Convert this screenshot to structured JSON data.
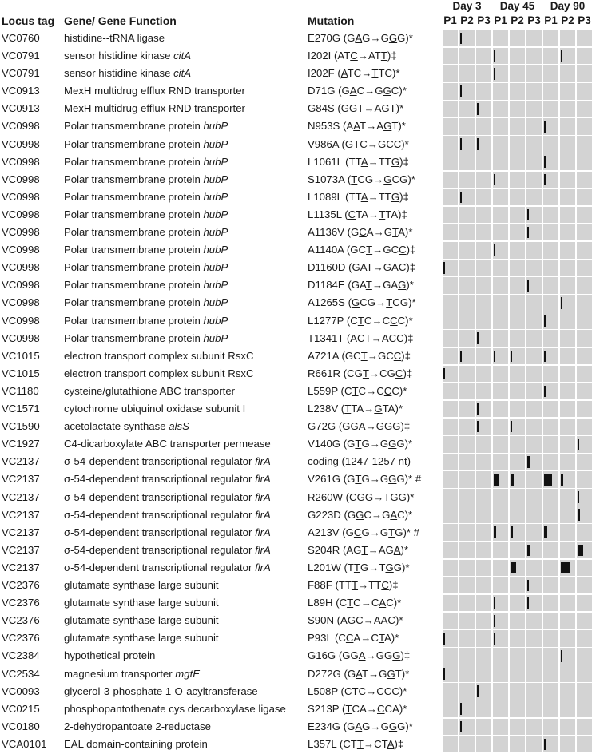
{
  "headers": {
    "locus": "Locus tag",
    "gene": "Gene/ Gene Function",
    "mutation": "Mutation"
  },
  "days": [
    "Day 3",
    "Day 45",
    "Day 90"
  ],
  "populations": [
    "P1",
    "P2",
    "P3",
    "P1",
    "P2",
    "P3",
    "P1",
    "P2",
    "P3"
  ],
  "rows": [
    {
      "locus": "VC0760",
      "gene": "histidine--tRNA ligase",
      "mut": "E270G (G[A]G→G[G]G)*",
      "marks": [
        [
          1,
          0.1
        ]
      ]
    },
    {
      "locus": "VC0791",
      "gene": "sensor histidine kinase {citA}",
      "mut": "I202I (AT[C]→AT[T])‡",
      "marks": [
        [
          3,
          0.1
        ],
        [
          7,
          0.1
        ]
      ]
    },
    {
      "locus": "VC0791",
      "gene": "sensor histidine kinase {citA}",
      "mut": "I202F ([A]TC→[T]TC)*",
      "marks": [
        [
          3,
          0.1
        ]
      ]
    },
    {
      "locus": "VC0913",
      "gene": "MexH multidrug efflux RND transporter",
      "mut": "D71G (G[A]C→G[G]C)*",
      "marks": [
        [
          1,
          0.1
        ]
      ]
    },
    {
      "locus": "VC0913",
      "gene": "MexH multidrug efflux RND transporter",
      "mut": "G84S ([G]GT→[A]GT)*",
      "marks": [
        [
          2,
          0.1
        ]
      ]
    },
    {
      "locus": "VC0998",
      "gene": "Polar transmembrane protein {hubP}",
      "mut": "N953S (A[A]T→A[G]T)*",
      "marks": [
        [
          6,
          0.1
        ]
      ]
    },
    {
      "locus": "VC0998",
      "gene": "Polar transmembrane protein {hubP}",
      "mut": "V986A (G[T]C→G[C]C)*",
      "marks": [
        [
          1,
          0.1
        ],
        [
          2,
          0.1
        ]
      ]
    },
    {
      "locus": "VC0998",
      "gene": "Polar transmembrane protein {hubP}",
      "mut": "L1061L (TT[A]→TT[G])‡",
      "marks": [
        [
          6,
          0.1
        ]
      ]
    },
    {
      "locus": "VC0998",
      "gene": "Polar transmembrane protein {hubP}",
      "mut": "S1073A ([T]CG→[G]CG)*",
      "marks": [
        [
          3,
          0.1
        ],
        [
          6,
          0.15
        ]
      ]
    },
    {
      "locus": "VC0998",
      "gene": "Polar transmembrane protein {hubP}",
      "mut": "L1089L (TT[A]→TT[G])‡",
      "marks": [
        [
          1,
          0.1
        ]
      ]
    },
    {
      "locus": "VC0998",
      "gene": "Polar transmembrane protein {hubP}",
      "mut": "L1135L ([C]TA→[T]TA)‡",
      "marks": [
        [
          5,
          0.1
        ]
      ]
    },
    {
      "locus": "VC0998",
      "gene": "Polar transmembrane protein {hubP}",
      "mut": "A1136V (G[C]A→G[T]A)*",
      "marks": [
        [
          5,
          0.1
        ]
      ]
    },
    {
      "locus": "VC0998",
      "gene": "Polar transmembrane protein {hubP}",
      "mut": "A1140A (GC[T]→GC[C])‡",
      "marks": [
        [
          3,
          0.1
        ]
      ]
    },
    {
      "locus": "VC0998",
      "gene": "Polar transmembrane protein {hubP}",
      "mut": "D1160D (GA[T]→GA[C])‡",
      "marks": [
        [
          0,
          0.1
        ]
      ]
    },
    {
      "locus": "VC0998",
      "gene": "Polar transmembrane protein {hubP}",
      "mut": "D1184E (GA[T]→GA[G])*",
      "marks": [
        [
          5,
          0.1
        ]
      ]
    },
    {
      "locus": "VC0998",
      "gene": "Polar transmembrane protein {hubP}",
      "mut": "A1265S ([G]CG→[T]CG)*",
      "marks": [
        [
          7,
          0.1
        ]
      ]
    },
    {
      "locus": "VC0998",
      "gene": "Polar transmembrane protein {hubP}",
      "mut": "L1277P (C[T]C→C[C]C)*",
      "marks": [
        [
          6,
          0.1
        ]
      ]
    },
    {
      "locus": "VC0998",
      "gene": "Polar transmembrane protein {hubP}",
      "mut": "T1341T (AC[T]→AC[C])‡",
      "marks": [
        [
          2,
          0.1
        ]
      ]
    },
    {
      "locus": "VC1015",
      "gene": "electron transport complex subunit RsxC",
      "mut": "A721A (GC[T]→GC[C])‡",
      "marks": [
        [
          1,
          0.1
        ],
        [
          3,
          0.1
        ],
        [
          4,
          0.1
        ],
        [
          6,
          0.1
        ]
      ]
    },
    {
      "locus": "VC1015",
      "gene": "electron transport complex subunit RsxC",
      "mut": "R661R (CG[T]→CG[C])‡",
      "marks": [
        [
          0,
          0.1
        ]
      ]
    },
    {
      "locus": "VC1180",
      "gene": "cysteine/glutathione ABC transporter",
      "mut": "L559P (C[T]C→C[C]C)*",
      "marks": [
        [
          6,
          0.1
        ]
      ]
    },
    {
      "locus": "VC1571",
      "gene": "cytochrome ubiquinol oxidase subunit I",
      "mut": "L238V ([T]TA→[G]TA)*",
      "marks": [
        [
          2,
          0.1
        ]
      ]
    },
    {
      "locus": "VC1590",
      "gene": "acetolactate synthase {alsS}",
      "mut": "G72G (GG[A]→GG[G])‡",
      "marks": [
        [
          2,
          0.1
        ],
        [
          4,
          0.1
        ]
      ]
    },
    {
      "locus": "VC1927",
      "gene": "C4-dicarboxylate ABC transporter permease",
      "mut": "V140G (G[T]G→G[G]G)*",
      "marks": [
        [
          8,
          0.1
        ]
      ]
    },
    {
      "locus": "VC2137",
      "gene": "σ-54-dependent transcriptional regulator {flrA}",
      "mut": "coding (1247-1257 nt)",
      "marks": [
        [
          5,
          0.2
        ]
      ]
    },
    {
      "locus": "VC2137",
      "gene": "σ-54-dependent transcriptional regulator {flrA}",
      "mut": "V261G (G[T]G→G[G]G)* #",
      "marks": [
        [
          3,
          0.35
        ],
        [
          4,
          0.2
        ],
        [
          6,
          0.55
        ],
        [
          7,
          0.15
        ]
      ]
    },
    {
      "locus": "VC2137",
      "gene": "σ-54-dependent transcriptional regulator {flrA}",
      "mut": "R260W ([C]GG→[T]GG)*",
      "marks": [
        [
          8,
          0.1
        ]
      ]
    },
    {
      "locus": "VC2137",
      "gene": "σ-54-dependent transcriptional regulator {flrA}",
      "mut": "G223D (G[G]C→G[A]C)*",
      "marks": [
        [
          8,
          0.15
        ]
      ]
    },
    {
      "locus": "VC2137",
      "gene": "σ-54-dependent transcriptional regulator {flrA}",
      "mut": "A213V (G[C]G→G[T]G)* #",
      "marks": [
        [
          3,
          0.15
        ],
        [
          4,
          0.15
        ],
        [
          6,
          0.2
        ]
      ]
    },
    {
      "locus": "VC2137",
      "gene": "σ-54-dependent transcriptional regulator {flrA}",
      "mut": "S204R (AG[T]→AG[A])*",
      "marks": [
        [
          5,
          0.2
        ],
        [
          8,
          0.35
        ]
      ]
    },
    {
      "locus": "VC2137",
      "gene": "σ-54-dependent transcriptional regulator {flrA}",
      "mut": "L201W (T[T]G→T[G]G)*",
      "marks": [
        [
          4,
          0.35
        ],
        [
          7,
          0.6
        ]
      ]
    },
    {
      "locus": "VC2376",
      "gene": "glutamate synthase large subunit",
      "mut": "F88F (TT[T]→TT[C])‡",
      "marks": [
        [
          5,
          0.1
        ]
      ]
    },
    {
      "locus": "VC2376",
      "gene": "glutamate synthase large subunit",
      "mut": "L89H (C[T]C→C[A]C)*",
      "marks": [
        [
          3,
          0.1
        ],
        [
          5,
          0.1
        ]
      ]
    },
    {
      "locus": "VC2376",
      "gene": "glutamate synthase large subunit",
      "mut": "S90N (A[G]C→A[A]C)*",
      "marks": [
        [
          3,
          0.1
        ]
      ]
    },
    {
      "locus": "VC2376",
      "gene": "glutamate synthase large subunit",
      "mut": "P93L (C[C]A→C[T]A)*",
      "marks": [
        [
          0,
          0.1
        ],
        [
          3,
          0.1
        ]
      ]
    },
    {
      "locus": "VC2384",
      "gene": "hypothetical protein",
      "mut": "G16G (GG[A]→GG[G])‡",
      "marks": [
        [
          7,
          0.1
        ]
      ]
    },
    {
      "locus": "VC2534",
      "gene": "magnesium transporter {mgtE}",
      "mut": "D272G (G[A]T→G[G]T)*",
      "marks": [
        [
          0,
          0.1
        ]
      ]
    },
    {
      "locus": "VC0093",
      "gene": "glycerol-3-phosphate 1-O-acyltransferase",
      "mut": "L508P (C[T]C→C[C]C)*",
      "marks": [
        [
          2,
          0.1
        ]
      ]
    },
    {
      "locus": "VC0215",
      "gene": "phosphopantothenate cys decarboxylase ligase",
      "mut": "S213P ([T]CA→[C]CA)*",
      "marks": [
        [
          1,
          0.1
        ]
      ]
    },
    {
      "locus": "VC0180",
      "gene": "2-dehydropantoate 2-reductase",
      "mut": "E234G (G[A]G→G[G]G)*",
      "marks": [
        [
          1,
          0.1
        ]
      ]
    },
    {
      "locus": "VCA0101",
      "gene": "EAL domain-containing protein",
      "mut": "L357L (CT[T]→CT[A])‡",
      "marks": [
        [
          6,
          0.1
        ]
      ]
    }
  ]
}
